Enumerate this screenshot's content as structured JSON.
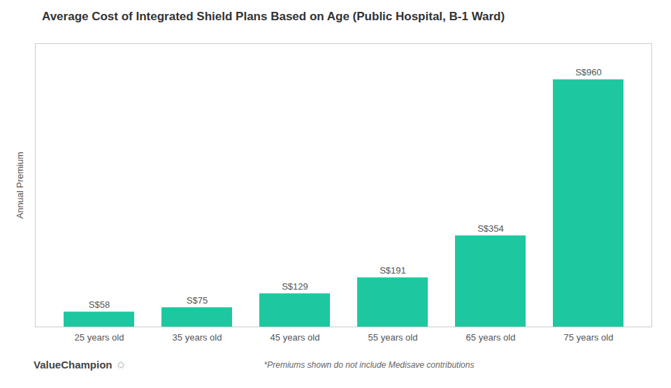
{
  "chart_data": {
    "type": "bar",
    "title": "Average Cost of Integrated Shield Plans Based on Age (Public Hospital, B-1 Ward)",
    "categories": [
      "25 years old",
      "35 years old",
      "45 years old",
      "55 years old",
      "65 years old",
      "75 years old"
    ],
    "values": [
      58,
      75,
      129,
      191,
      354,
      960
    ],
    "value_labels": [
      "S$58",
      "S$75",
      "S$129",
      "S$191",
      "S$354",
      "S$960"
    ],
    "data_labels": true,
    "color": "#1DC8A0",
    "ylabel": "Annual Premium",
    "ylim": [
      0,
      1100
    ],
    "yticks": [],
    "tick_labels": "x",
    "grid": false,
    "annotations": [
      "*Premiums shown do not include Medisave contributions",
      "ValueChampion",
      "✩"
    ]
  }
}
